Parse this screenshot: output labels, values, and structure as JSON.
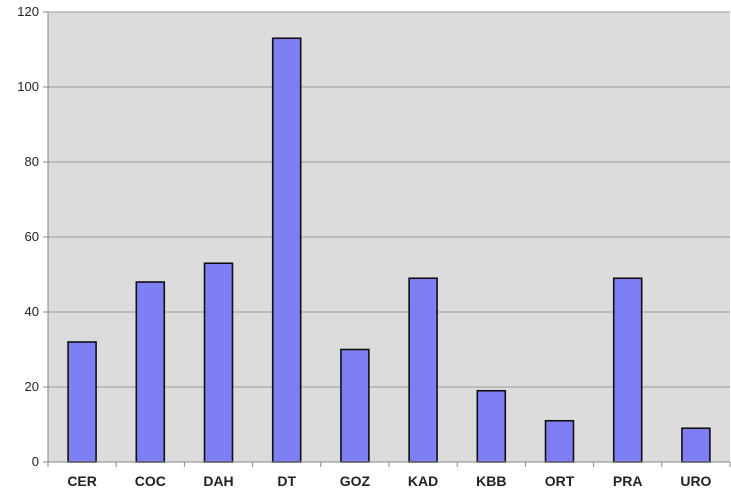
{
  "chart_data": {
    "type": "bar",
    "title": "",
    "xlabel": "",
    "ylabel": "",
    "categories": [
      "CER",
      "COC",
      "DAH",
      "DT",
      "GOZ",
      "KAD",
      "KBB",
      "ORT",
      "PRA",
      "URO"
    ],
    "values": [
      32,
      48,
      53,
      113,
      30,
      49,
      19,
      11,
      49,
      9
    ],
    "ylim": [
      0,
      120
    ],
    "yticks": [
      "0",
      "20",
      "40",
      "60",
      "80",
      "100",
      "120"
    ],
    "grid": true,
    "legend": "none",
    "colors": {
      "bar": "#7f7ff5",
      "plot_background": "#dcdcdc",
      "gridline": "#9a9a9a"
    }
  }
}
